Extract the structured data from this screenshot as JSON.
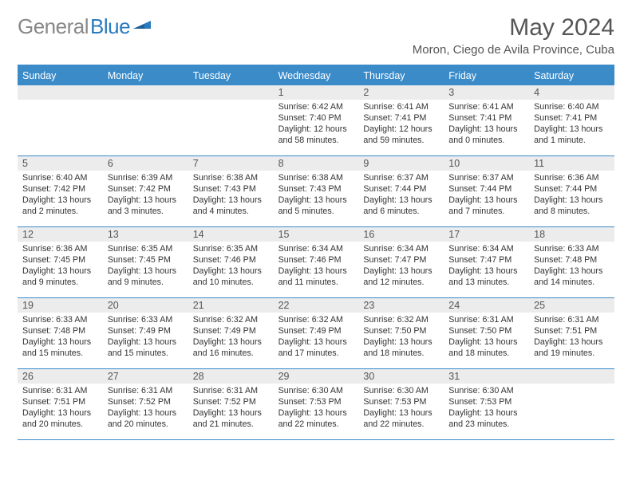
{
  "logo": {
    "text_gray": "General",
    "text_blue": "Blue"
  },
  "title": "May 2024",
  "location": "Moron, Ciego de Avila Province, Cuba",
  "colors": {
    "header_bg": "#3b8bc9",
    "header_text": "#ffffff",
    "daynum_bg": "#ececec",
    "text": "#333333",
    "border": "#3b8bc9",
    "logo_gray": "#888888",
    "logo_blue": "#2a7bbf"
  },
  "day_names": [
    "Sunday",
    "Monday",
    "Tuesday",
    "Wednesday",
    "Thursday",
    "Friday",
    "Saturday"
  ],
  "weeks": [
    [
      {
        "num": "",
        "lines": []
      },
      {
        "num": "",
        "lines": []
      },
      {
        "num": "",
        "lines": []
      },
      {
        "num": "1",
        "lines": [
          "Sunrise: 6:42 AM",
          "Sunset: 7:40 PM",
          "Daylight: 12 hours and 58 minutes."
        ]
      },
      {
        "num": "2",
        "lines": [
          "Sunrise: 6:41 AM",
          "Sunset: 7:41 PM",
          "Daylight: 12 hours and 59 minutes."
        ]
      },
      {
        "num": "3",
        "lines": [
          "Sunrise: 6:41 AM",
          "Sunset: 7:41 PM",
          "Daylight: 13 hours and 0 minutes."
        ]
      },
      {
        "num": "4",
        "lines": [
          "Sunrise: 6:40 AM",
          "Sunset: 7:41 PM",
          "Daylight: 13 hours and 1 minute."
        ]
      }
    ],
    [
      {
        "num": "5",
        "lines": [
          "Sunrise: 6:40 AM",
          "Sunset: 7:42 PM",
          "Daylight: 13 hours and 2 minutes."
        ]
      },
      {
        "num": "6",
        "lines": [
          "Sunrise: 6:39 AM",
          "Sunset: 7:42 PM",
          "Daylight: 13 hours and 3 minutes."
        ]
      },
      {
        "num": "7",
        "lines": [
          "Sunrise: 6:38 AM",
          "Sunset: 7:43 PM",
          "Daylight: 13 hours and 4 minutes."
        ]
      },
      {
        "num": "8",
        "lines": [
          "Sunrise: 6:38 AM",
          "Sunset: 7:43 PM",
          "Daylight: 13 hours and 5 minutes."
        ]
      },
      {
        "num": "9",
        "lines": [
          "Sunrise: 6:37 AM",
          "Sunset: 7:44 PM",
          "Daylight: 13 hours and 6 minutes."
        ]
      },
      {
        "num": "10",
        "lines": [
          "Sunrise: 6:37 AM",
          "Sunset: 7:44 PM",
          "Daylight: 13 hours and 7 minutes."
        ]
      },
      {
        "num": "11",
        "lines": [
          "Sunrise: 6:36 AM",
          "Sunset: 7:44 PM",
          "Daylight: 13 hours and 8 minutes."
        ]
      }
    ],
    [
      {
        "num": "12",
        "lines": [
          "Sunrise: 6:36 AM",
          "Sunset: 7:45 PM",
          "Daylight: 13 hours and 9 minutes."
        ]
      },
      {
        "num": "13",
        "lines": [
          "Sunrise: 6:35 AM",
          "Sunset: 7:45 PM",
          "Daylight: 13 hours and 9 minutes."
        ]
      },
      {
        "num": "14",
        "lines": [
          "Sunrise: 6:35 AM",
          "Sunset: 7:46 PM",
          "Daylight: 13 hours and 10 minutes."
        ]
      },
      {
        "num": "15",
        "lines": [
          "Sunrise: 6:34 AM",
          "Sunset: 7:46 PM",
          "Daylight: 13 hours and 11 minutes."
        ]
      },
      {
        "num": "16",
        "lines": [
          "Sunrise: 6:34 AM",
          "Sunset: 7:47 PM",
          "Daylight: 13 hours and 12 minutes."
        ]
      },
      {
        "num": "17",
        "lines": [
          "Sunrise: 6:34 AM",
          "Sunset: 7:47 PM",
          "Daylight: 13 hours and 13 minutes."
        ]
      },
      {
        "num": "18",
        "lines": [
          "Sunrise: 6:33 AM",
          "Sunset: 7:48 PM",
          "Daylight: 13 hours and 14 minutes."
        ]
      }
    ],
    [
      {
        "num": "19",
        "lines": [
          "Sunrise: 6:33 AM",
          "Sunset: 7:48 PM",
          "Daylight: 13 hours and 15 minutes."
        ]
      },
      {
        "num": "20",
        "lines": [
          "Sunrise: 6:33 AM",
          "Sunset: 7:49 PM",
          "Daylight: 13 hours and 15 minutes."
        ]
      },
      {
        "num": "21",
        "lines": [
          "Sunrise: 6:32 AM",
          "Sunset: 7:49 PM",
          "Daylight: 13 hours and 16 minutes."
        ]
      },
      {
        "num": "22",
        "lines": [
          "Sunrise: 6:32 AM",
          "Sunset: 7:49 PM",
          "Daylight: 13 hours and 17 minutes."
        ]
      },
      {
        "num": "23",
        "lines": [
          "Sunrise: 6:32 AM",
          "Sunset: 7:50 PM",
          "Daylight: 13 hours and 18 minutes."
        ]
      },
      {
        "num": "24",
        "lines": [
          "Sunrise: 6:31 AM",
          "Sunset: 7:50 PM",
          "Daylight: 13 hours and 18 minutes."
        ]
      },
      {
        "num": "25",
        "lines": [
          "Sunrise: 6:31 AM",
          "Sunset: 7:51 PM",
          "Daylight: 13 hours and 19 minutes."
        ]
      }
    ],
    [
      {
        "num": "26",
        "lines": [
          "Sunrise: 6:31 AM",
          "Sunset: 7:51 PM",
          "Daylight: 13 hours and 20 minutes."
        ]
      },
      {
        "num": "27",
        "lines": [
          "Sunrise: 6:31 AM",
          "Sunset: 7:52 PM",
          "Daylight: 13 hours and 20 minutes."
        ]
      },
      {
        "num": "28",
        "lines": [
          "Sunrise: 6:31 AM",
          "Sunset: 7:52 PM",
          "Daylight: 13 hours and 21 minutes."
        ]
      },
      {
        "num": "29",
        "lines": [
          "Sunrise: 6:30 AM",
          "Sunset: 7:53 PM",
          "Daylight: 13 hours and 22 minutes."
        ]
      },
      {
        "num": "30",
        "lines": [
          "Sunrise: 6:30 AM",
          "Sunset: 7:53 PM",
          "Daylight: 13 hours and 22 minutes."
        ]
      },
      {
        "num": "31",
        "lines": [
          "Sunrise: 6:30 AM",
          "Sunset: 7:53 PM",
          "Daylight: 13 hours and 23 minutes."
        ]
      },
      {
        "num": "",
        "lines": []
      }
    ]
  ]
}
